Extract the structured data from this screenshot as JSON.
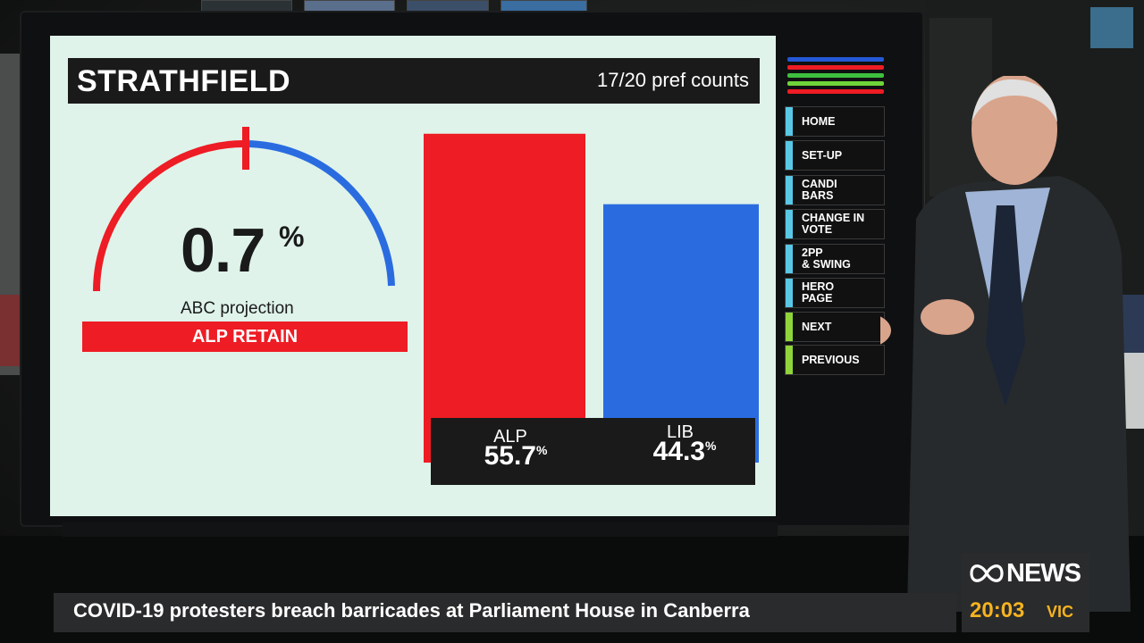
{
  "display": {
    "seat_title": "STRATHFIELD",
    "pref_counts": "17/20 pref counts",
    "gauge": {
      "value": "0.7",
      "unit": "%",
      "label": "ABC projection",
      "verdict": "ALP RETAIN"
    }
  },
  "chart_data": {
    "type": "bar",
    "categories": [
      "ALP",
      "LIB"
    ],
    "values": [
      55.7,
      44.3
    ],
    "value_labels": [
      "55.7",
      "44.3"
    ],
    "unit": "%",
    "colors": [
      "#ee1c24",
      "#2a6ce0"
    ],
    "ylim": [
      0,
      60
    ],
    "grid": false
  },
  "nav": {
    "stripes": [
      "#2458d6",
      "#ee1c24",
      "#3fbf3f",
      "#6fd43a",
      "#ee1c24"
    ],
    "buttons": [
      {
        "label": "HOME",
        "accent": "#58c8e6"
      },
      {
        "label": "SET-UP",
        "accent": "#58c8e6"
      },
      {
        "label": "CANDI\nBARS",
        "accent": "#58c8e6"
      },
      {
        "label": "CHANGE IN\nVOTE",
        "accent": "#58c8e6"
      },
      {
        "label": "2PP\n& SWING",
        "accent": "#58c8e6"
      },
      {
        "label": "HERO\nPAGE",
        "accent": "#58c8e6"
      },
      {
        "label": "NEXT",
        "accent": "#8fd43a"
      },
      {
        "label": "PREVIOUS",
        "accent": "#8fd43a"
      }
    ]
  },
  "ticker": {
    "headline": "COVID-19 protesters breach barricades at Parliament House in Canberra"
  },
  "brand": {
    "name": "NEWS",
    "time": "20:03",
    "zone": "VIC"
  }
}
